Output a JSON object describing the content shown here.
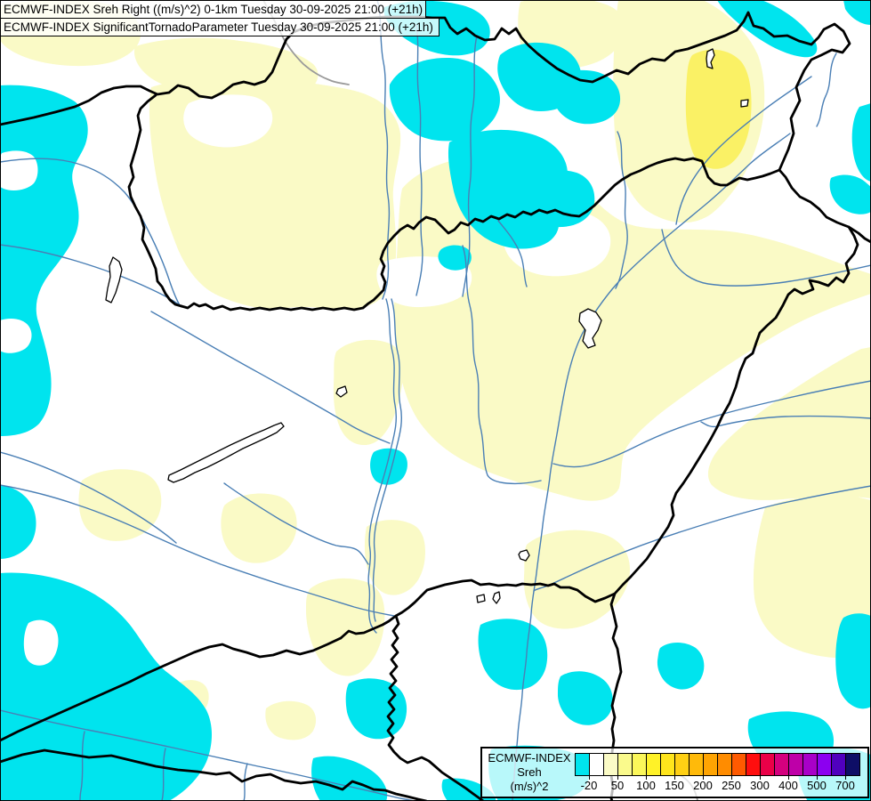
{
  "title_bar": {
    "line1": "ECMWF-INDEX Sreh Right ((m/s)^2) 0-1km Tuesday 30-09-2025 21:00 (+21h)",
    "line2": "ECMWF-INDEX SignificantTornadoParameter Tuesday 30-09-2025 21:00 (+21h)"
  },
  "legend": {
    "product": "ECMWF-INDEX",
    "parameter": "Sreh",
    "units": "(m/s)^2",
    "tick_labels": [
      "-20",
      "50",
      "100",
      "150",
      "200",
      "250",
      "300",
      "400",
      "500",
      "700"
    ],
    "colorbar_colors": [
      "#00E4EE",
      "#FFFFFF",
      "#FBFBC6",
      "#FAFA8C",
      "#FBF75A",
      "#FFF228",
      "#FFE51C",
      "#FFD014",
      "#FFBA0A",
      "#FFA402",
      "#FF8C00",
      "#FF5A00",
      "#FF0E0E",
      "#EA0048",
      "#D4007E",
      "#BE00A8",
      "#A800C8",
      "#8C00F0",
      "#5000BE",
      "#0E0E66"
    ]
  },
  "map": {
    "fill_colors": {
      "negative_srh_cyan": "#00E4EE",
      "low_srh_pale_yellow": "#FAFAC6",
      "moderate_srh_yellow": "#FAF165",
      "background": "#FFFFFF"
    },
    "line_colors": {
      "country_border": "#000000",
      "river": "#4A7FB5",
      "river_outside_domain": "#9A9A9A"
    }
  }
}
